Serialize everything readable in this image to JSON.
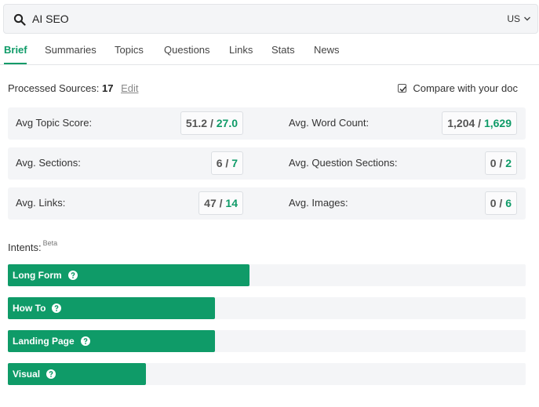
{
  "search": {
    "query": "AI SEO",
    "country": "US"
  },
  "tabs": [
    {
      "label": "Brief"
    },
    {
      "label": "Summaries"
    },
    {
      "label": "Topics"
    },
    {
      "label": "Questions"
    },
    {
      "label": "Links"
    },
    {
      "label": "Stats"
    },
    {
      "label": "News"
    }
  ],
  "processed": {
    "label": "Processed Sources:",
    "count": "17",
    "edit_label": "Edit"
  },
  "compare": {
    "label": "Compare with your doc",
    "checked": true
  },
  "stats": [
    {
      "label": "Avg Topic Score:",
      "competitor": "51.2",
      "yours": "27.0"
    },
    {
      "label": "Avg. Word Count:",
      "competitor": "1,204",
      "yours": "1,629"
    },
    {
      "label": "Avg. Sections:",
      "competitor": "6",
      "yours": "7"
    },
    {
      "label": "Avg. Question Sections:",
      "competitor": "0",
      "yours": "2"
    },
    {
      "label": "Avg. Links:",
      "competitor": "47",
      "yours": "14"
    },
    {
      "label": "Avg. Images:",
      "competitor": "0",
      "yours": "6"
    }
  ],
  "separator": "/",
  "intents": {
    "label": "Intents:",
    "badge": "Beta",
    "items": [
      {
        "label": "Long Form",
        "level": 0.467
      },
      {
        "label": "How To",
        "level": 0.4
      },
      {
        "label": "Landing Page",
        "level": 0.4
      },
      {
        "label": "Visual",
        "level": 0.267
      }
    ]
  },
  "colors": {
    "accent": "#0f9b68",
    "panel": "#f4f5f7"
  }
}
